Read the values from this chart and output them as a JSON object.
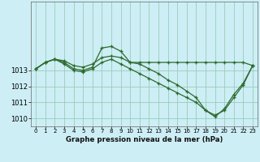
{
  "background_color": "#cdeef5",
  "grid_color": "#99ccbb",
  "line_color": "#2d6a2d",
  "xlabel": "Graphe pression niveau de la mer (hPa)",
  "xlim": [
    -0.5,
    23.5
  ],
  "ylim": [
    1009.5,
    1017.3
  ],
  "yticks": [
    1010,
    1011,
    1012,
    1013
  ],
  "xticks": [
    0,
    1,
    2,
    3,
    4,
    5,
    6,
    7,
    8,
    9,
    10,
    11,
    12,
    13,
    14,
    15,
    16,
    17,
    18,
    19,
    20,
    21,
    22,
    23
  ],
  "series1_x": [
    0,
    1,
    2,
    3,
    4,
    5,
    6,
    7,
    8,
    9,
    10,
    11,
    12,
    13,
    14,
    15,
    16,
    17,
    18,
    19,
    20,
    21,
    22,
    23
  ],
  "series1_y": [
    1013.1,
    1013.5,
    1013.7,
    1013.6,
    1013.3,
    1013.2,
    1013.4,
    1013.8,
    1013.9,
    1013.8,
    1013.5,
    1013.5,
    1013.5,
    1013.5,
    1013.5,
    1013.5,
    1013.5,
    1013.5,
    1013.5,
    1013.5,
    1013.5,
    1013.5,
    1013.5,
    1013.3
  ],
  "series2_x": [
    0,
    1,
    2,
    3,
    4,
    5,
    6,
    7,
    8,
    9,
    10,
    11,
    12,
    13,
    14,
    15,
    16,
    17,
    18,
    19,
    20,
    21,
    22,
    23
  ],
  "series2_y": [
    1013.1,
    1013.5,
    1013.7,
    1013.5,
    1013.1,
    1013.0,
    1013.2,
    1014.4,
    1014.5,
    1014.2,
    1013.5,
    1013.4,
    1013.1,
    1012.8,
    1012.4,
    1012.1,
    1011.7,
    1011.3,
    1010.5,
    1010.1,
    1010.6,
    1011.5,
    1012.2,
    1013.3
  ],
  "series3_x": [
    0,
    1,
    2,
    3,
    4,
    5,
    6,
    7,
    8,
    9,
    10,
    11,
    12,
    13,
    14,
    15,
    16,
    17,
    18,
    19,
    20,
    21,
    22,
    23
  ],
  "series3_y": [
    1013.1,
    1013.5,
    1013.7,
    1013.4,
    1013.0,
    1012.9,
    1013.1,
    1013.5,
    1013.7,
    1013.4,
    1013.1,
    1012.8,
    1012.5,
    1012.2,
    1011.9,
    1011.6,
    1011.3,
    1011.0,
    1010.5,
    1010.2,
    1010.5,
    1011.3,
    1012.1,
    1013.3
  ]
}
